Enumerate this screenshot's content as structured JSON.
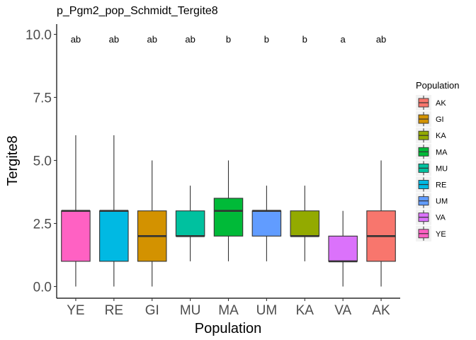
{
  "chart_data": {
    "type": "boxplot",
    "title": "p_Pgm2_pop_Schmidt_Tergite8",
    "xlabel": "Population",
    "ylabel": "Tergite8",
    "ylim": [
      0,
      10
    ],
    "yticks": [
      "0.0",
      "2.5",
      "5.0",
      "7.5",
      "10.0"
    ],
    "grid": false,
    "legend": {
      "title": "Population",
      "position": "right",
      "entries": [
        {
          "label": "AK",
          "color": "#F8766D"
        },
        {
          "label": "GI",
          "color": "#D39200"
        },
        {
          "label": "KA",
          "color": "#93AA00"
        },
        {
          "label": "MA",
          "color": "#00BA38"
        },
        {
          "label": "MU",
          "color": "#00C19F"
        },
        {
          "label": "RE",
          "color": "#00B9E3"
        },
        {
          "label": "UM",
          "color": "#619CFF"
        },
        {
          "label": "VA",
          "color": "#DB72FB"
        },
        {
          "label": "YE",
          "color": "#FF61C3"
        }
      ]
    },
    "categories": [
      "YE",
      "RE",
      "GI",
      "MU",
      "MA",
      "UM",
      "KA",
      "VA",
      "AK"
    ],
    "boxes": [
      {
        "category": "YE",
        "min": 0,
        "q1": 1,
        "median": 3,
        "q3": 3,
        "max": 6,
        "color": "#FF61C3",
        "letter": "ab"
      },
      {
        "category": "RE",
        "min": 0,
        "q1": 1,
        "median": 3,
        "q3": 3,
        "max": 6,
        "color": "#00B9E3",
        "letter": "ab"
      },
      {
        "category": "GI",
        "min": 0,
        "q1": 1,
        "median": 2,
        "q3": 3,
        "max": 5,
        "color": "#D39200",
        "letter": "ab"
      },
      {
        "category": "MU",
        "min": 1,
        "q1": 2,
        "median": 2,
        "q3": 3,
        "max": 4,
        "color": "#00C19F",
        "letter": "ab"
      },
      {
        "category": "MA",
        "min": 1,
        "q1": 2,
        "median": 3,
        "q3": 3.5,
        "max": 5,
        "color": "#00BA38",
        "letter": "b"
      },
      {
        "category": "UM",
        "min": 1,
        "q1": 2,
        "median": 3,
        "q3": 3,
        "max": 4,
        "color": "#619CFF",
        "letter": "b"
      },
      {
        "category": "KA",
        "min": 1,
        "q1": 2,
        "median": 2,
        "q3": 3,
        "max": 4,
        "color": "#93AA00",
        "letter": "b"
      },
      {
        "category": "VA",
        "min": 0,
        "q1": 1,
        "median": 1,
        "q3": 2,
        "max": 3,
        "color": "#DB72FB",
        "letter": "a"
      },
      {
        "category": "AK",
        "min": 0,
        "q1": 1,
        "median": 2,
        "q3": 3,
        "max": 5,
        "color": "#F8766D",
        "letter": "ab"
      }
    ]
  }
}
